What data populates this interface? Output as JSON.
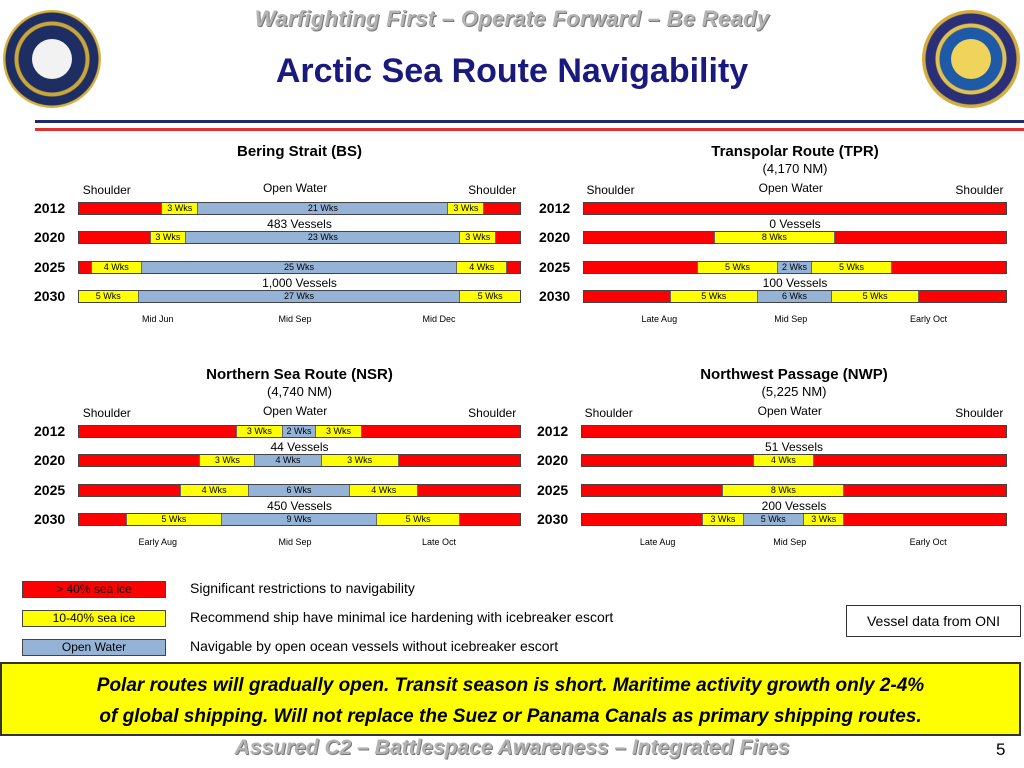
{
  "header": {
    "tagline": "Warfighting First – Operate Forward – Be Ready",
    "title": "Arctic Sea Route Navigability"
  },
  "colors": {
    "red": "#ff0000",
    "yellow": "#ffff00",
    "blue": "#95b3d7",
    "rule_red": "#e03030",
    "rule_navy": "#1f2a6b"
  },
  "chart_data": [
    {
      "type": "bar",
      "title": "Bering Strait (BS)",
      "subtitle": "",
      "column_headers": [
        "Shoulder",
        "Open Water",
        "Shoulder"
      ],
      "month_labels": [
        "Mid Jun",
        "Mid Sep",
        "Mid Dec"
      ],
      "rows": [
        {
          "year": "2012",
          "segments": [
            {
              "c": "red",
              "w": 7
            },
            {
              "c": "yellow",
              "w": 3,
              "label": "3 Wks"
            },
            {
              "c": "blue",
              "w": 21,
              "label": "21 Wks"
            },
            {
              "c": "yellow",
              "w": 3,
              "label": "3 Wks"
            },
            {
              "c": "red",
              "w": 3
            }
          ],
          "vessels": "483 Vessels"
        },
        {
          "year": "2020",
          "segments": [
            {
              "c": "red",
              "w": 6
            },
            {
              "c": "yellow",
              "w": 3,
              "label": "3 Wks"
            },
            {
              "c": "blue",
              "w": 23,
              "label": "23 Wks"
            },
            {
              "c": "yellow",
              "w": 3,
              "label": "3 Wks"
            },
            {
              "c": "red",
              "w": 2
            }
          ]
        },
        {
          "year": "2025",
          "segments": [
            {
              "c": "red",
              "w": 1
            },
            {
              "c": "yellow",
              "w": 4,
              "label": "4 Wks"
            },
            {
              "c": "blue",
              "w": 25,
              "label": "25 Wks"
            },
            {
              "c": "yellow",
              "w": 4,
              "label": "4 Wks"
            },
            {
              "c": "red",
              "w": 1
            }
          ],
          "vessels": "1,000 Vessels"
        },
        {
          "year": "2030",
          "segments": [
            {
              "c": "yellow",
              "w": 5,
              "label": "5 Wks"
            },
            {
              "c": "blue",
              "w": 27,
              "label": "27 Wks"
            },
            {
              "c": "yellow",
              "w": 5,
              "label": "5 Wks"
            }
          ]
        }
      ]
    },
    {
      "type": "bar",
      "title": "Transpolar Route (TPR)",
      "subtitle": "(4,170 NM)",
      "column_headers": [
        "Shoulder",
        "Open Water",
        "Shoulder"
      ],
      "month_labels": [
        "Late Aug",
        "Mid Sep",
        "Early Oct"
      ],
      "rows": [
        {
          "year": "2012",
          "segments": [
            {
              "c": "red",
              "w": 42
            }
          ],
          "vessels": "0 Vessels"
        },
        {
          "year": "2020",
          "segments": [
            {
              "c": "red",
              "w": 13
            },
            {
              "c": "yellow",
              "w": 12,
              "label": "8 Wks"
            },
            {
              "c": "red",
              "w": 17
            }
          ]
        },
        {
          "year": "2025",
          "segments": [
            {
              "c": "red",
              "w": 10
            },
            {
              "c": "yellow",
              "w": 7,
              "label": "5 Wks"
            },
            {
              "c": "blue",
              "w": 3,
              "label": "2 Wks"
            },
            {
              "c": "yellow",
              "w": 7,
              "label": "5 Wks"
            },
            {
              "c": "red",
              "w": 10
            }
          ],
          "vessels": "100 Vessels"
        },
        {
          "year": "2030",
          "segments": [
            {
              "c": "red",
              "w": 7
            },
            {
              "c": "yellow",
              "w": 7,
              "label": "5 Wks"
            },
            {
              "c": "blue",
              "w": 6,
              "label": "6 Wks"
            },
            {
              "c": "yellow",
              "w": 7,
              "label": "5 Wks"
            },
            {
              "c": "red",
              "w": 7
            }
          ]
        }
      ]
    },
    {
      "type": "bar",
      "title": "Northern Sea Route (NSR)",
      "subtitle": "(4,740 NM)",
      "column_headers": [
        "Shoulder",
        "Open Water",
        "Shoulder"
      ],
      "month_labels": [
        "Early Aug",
        "Mid Sep",
        "Late Oct"
      ],
      "rows": [
        {
          "year": "2012",
          "segments": [
            {
              "c": "red",
              "w": 14
            },
            {
              "c": "yellow",
              "w": 4,
              "label": "3 Wks"
            },
            {
              "c": "blue",
              "w": 3,
              "label": "2 Wks"
            },
            {
              "c": "yellow",
              "w": 4,
              "label": "3 Wks"
            },
            {
              "c": "red",
              "w": 14
            }
          ],
          "vessels": "44 Vessels"
        },
        {
          "year": "2020",
          "segments": [
            {
              "c": "red",
              "w": 11
            },
            {
              "c": "yellow",
              "w": 5,
              "label": "3 Wks"
            },
            {
              "c": "blue",
              "w": 6,
              "label": "4 Wks"
            },
            {
              "c": "yellow",
              "w": 7,
              "label": "3 Wks"
            },
            {
              "c": "red",
              "w": 11
            }
          ]
        },
        {
          "year": "2025",
          "segments": [
            {
              "c": "red",
              "w": 9
            },
            {
              "c": "yellow",
              "w": 6,
              "label": "4 Wks"
            },
            {
              "c": "blue",
              "w": 9,
              "label": "6 Wks"
            },
            {
              "c": "yellow",
              "w": 6,
              "label": "4 Wks"
            },
            {
              "c": "red",
              "w": 9
            }
          ],
          "vessels": "450 Vessels"
        },
        {
          "year": "2030",
          "segments": [
            {
              "c": "red",
              "w": 4
            },
            {
              "c": "yellow",
              "w": 8,
              "label": "5 Wks"
            },
            {
              "c": "blue",
              "w": 13,
              "label": "9 Wks"
            },
            {
              "c": "yellow",
              "w": 7,
              "label": "5 Wks"
            },
            {
              "c": "red",
              "w": 5
            }
          ]
        }
      ]
    },
    {
      "type": "bar",
      "title": "Northwest Passage (NWP)",
      "subtitle": "(5,225 NM)",
      "column_headers": [
        "Shoulder",
        "Open Water",
        "Shoulder"
      ],
      "month_labels": [
        "Late Aug",
        "Mid Sep",
        "Early Oct"
      ],
      "rows": [
        {
          "year": "2012",
          "segments": [
            {
              "c": "red",
              "w": 42
            }
          ],
          "vessels": "51 Vessels"
        },
        {
          "year": "2020",
          "segments": [
            {
              "c": "red",
              "w": 17
            },
            {
              "c": "yellow",
              "w": 6,
              "label": "4 Wks"
            },
            {
              "c": "red",
              "w": 19
            }
          ]
        },
        {
          "year": "2025",
          "segments": [
            {
              "c": "red",
              "w": 14
            },
            {
              "c": "yellow",
              "w": 12,
              "label": "8 Wks"
            },
            {
              "c": "red",
              "w": 16
            }
          ],
          "vessels": "200 Vessels"
        },
        {
          "year": "2030",
          "segments": [
            {
              "c": "red",
              "w": 12
            },
            {
              "c": "yellow",
              "w": 4,
              "label": "3 Wks"
            },
            {
              "c": "blue",
              "w": 6,
              "label": "5 Wks"
            },
            {
              "c": "yellow",
              "w": 4,
              "label": "3 Wks"
            },
            {
              "c": "red",
              "w": 16
            }
          ]
        }
      ]
    }
  ],
  "legend": [
    {
      "key": "red",
      "label": "> 40% sea ice",
      "description": "Significant  restrictions to navigability"
    },
    {
      "key": "yellow",
      "label": "10-40% sea ice",
      "description": "Recommend ship have minimal ice hardening with icebreaker escort"
    },
    {
      "key": "blue",
      "label": "Open Water",
      "description": "Navigable by open ocean vessels without icebreaker escort"
    }
  ],
  "source_note": "Vessel data from ONI",
  "summary": {
    "line1": "Polar routes will gradually open. Transit season is short.  Maritime activity growth only 2-4%",
    "line2": "of global shipping.  Will not replace the Suez or Panama Canals as primary shipping routes."
  },
  "footer": {
    "text": "Assured C2  –  Battlespace Awareness  –  Integrated Fires",
    "page": "5"
  }
}
